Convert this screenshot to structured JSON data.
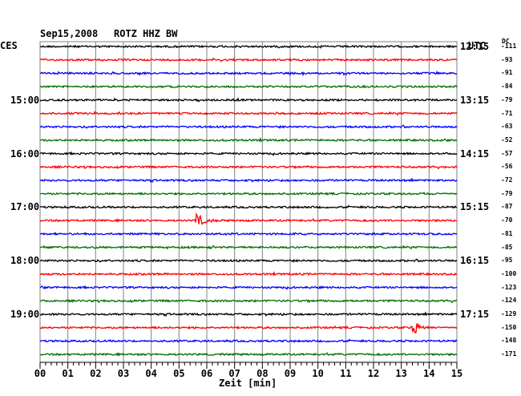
{
  "chart_data": {
    "type": "line",
    "header": {
      "date": "Sep15,2008",
      "station": "ROTZ HHZ BW",
      "left_zone": "CES",
      "right_zone": "UTC",
      "dc_label": "DC"
    },
    "xlabel": "Zeit [min]",
    "x_ticks": [
      "00",
      "01",
      "02",
      "03",
      "04",
      "05",
      "06",
      "07",
      "08",
      "09",
      "10",
      "11",
      "12",
      "13",
      "14",
      "15"
    ],
    "xlim": [
      0,
      15
    ],
    "trace_colors": [
      "#000000",
      "#ff0000",
      "#0000ff",
      "#007000"
    ],
    "left_hour_labels": [
      {
        "row": 4,
        "text": "15:00"
      },
      {
        "row": 8,
        "text": "16:00"
      },
      {
        "row": 12,
        "text": "17:00"
      },
      {
        "row": 16,
        "text": "18:00"
      },
      {
        "row": 20,
        "text": "19:00"
      }
    ],
    "right_time_labels": [
      {
        "row": 0,
        "text": "12:15"
      },
      {
        "row": 4,
        "text": "13:15"
      },
      {
        "row": 8,
        "text": "14:15"
      },
      {
        "row": 12,
        "text": "15:15"
      },
      {
        "row": 16,
        "text": "16:15"
      },
      {
        "row": 20,
        "text": "17:15"
      }
    ],
    "dc_offsets": [
      "-111",
      "-93",
      "-91",
      "-84",
      "-79",
      "-71",
      "-63",
      "-52",
      "-57",
      "-56",
      "-72",
      "-79",
      "-87",
      "-70",
      "-81",
      "-85",
      "-95",
      "-100",
      "-123",
      "-124",
      "-129",
      "-150",
      "-148",
      "-171"
    ],
    "events": [
      {
        "row": 13,
        "minute": 5.6,
        "amplitude": "large"
      },
      {
        "row": 21,
        "minute": 13.4,
        "amplitude": "large"
      }
    ]
  }
}
